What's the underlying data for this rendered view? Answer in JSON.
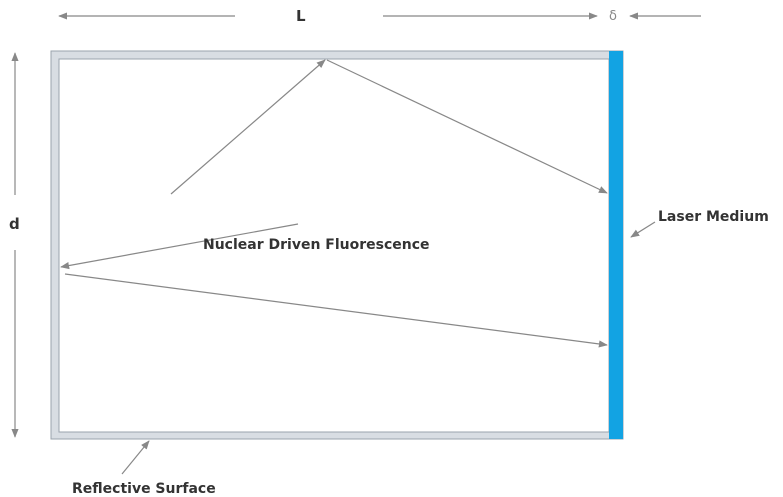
{
  "labels": {
    "length": "L",
    "thickness": "δ",
    "depth": "d",
    "laser_medium": "Laser Medium",
    "fluorescence": "Nuclear Driven Fluorescence",
    "reflective_surface": "Reflective Surface"
  },
  "colors": {
    "laser_medium": "#12a3e3",
    "cavity_wall": "#d8dde3",
    "arrows": "#888888",
    "text": "#333333"
  },
  "icons": {
    "dimension_arrows": "double-headed-arrow",
    "pointer": "arrow"
  }
}
